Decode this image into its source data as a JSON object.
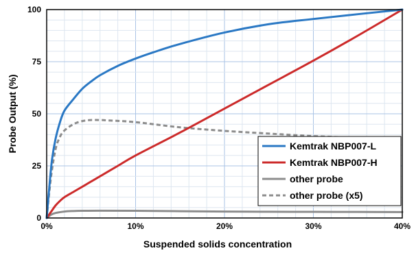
{
  "chart_data": {
    "type": "line",
    "title": "",
    "xlabel": "Suspended solids concentration",
    "ylabel": "Probe Output (%)",
    "xlim": [
      0,
      40
    ],
    "ylim": [
      0,
      100
    ],
    "x_ticks": [
      0,
      10,
      20,
      30,
      40
    ],
    "x_tick_labels": [
      "0%",
      "10%",
      "20%",
      "30%",
      "40%"
    ],
    "y_ticks": [
      0,
      25,
      50,
      75,
      100
    ],
    "y_tick_labels": [
      "0",
      "25",
      "50",
      "75",
      "100"
    ],
    "grid": true,
    "legend_position": "bottom-right",
    "series": [
      {
        "name": "Kemtrak NBP007-L",
        "color": "#2a78c4",
        "style": "solid",
        "x": [
          0,
          0.3,
          0.6,
          1.0,
          1.5,
          2.0,
          3.0,
          4.0,
          5.0,
          6.0,
          8.0,
          10.0,
          12.0,
          15.0,
          20.0,
          25.0,
          30.0,
          35.0,
          40.0
        ],
        "y": [
          0,
          15,
          28,
          38,
          46,
          51.5,
          57,
          62,
          65.5,
          68.5,
          73,
          76.5,
          79.5,
          83.5,
          89,
          93,
          95.5,
          97.8,
          100
        ]
      },
      {
        "name": "Kemtrak NBP007-H",
        "color": "#cc2a2a",
        "style": "solid",
        "x": [
          0,
          0.5,
          1.0,
          1.5,
          2.0,
          3.0,
          4.0,
          6.0,
          8.0,
          10.0,
          15.0,
          20.0,
          25.0,
          30.0,
          35.0,
          40.0
        ],
        "y": [
          0,
          3,
          6,
          8.2,
          10,
          12.5,
          15,
          20,
          25,
          30,
          41,
          52.5,
          64,
          75.5,
          87.5,
          100
        ]
      },
      {
        "name": "other probe",
        "color": "#8c8c8c",
        "style": "solid",
        "x": [
          0,
          0.5,
          1.0,
          2.0,
          3.0,
          4.0,
          6.0,
          10.0,
          15.0,
          20.0,
          25.0,
          30.0,
          35.0,
          40.0
        ],
        "y": [
          0,
          1.6,
          2.4,
          3.1,
          3.35,
          3.45,
          3.5,
          3.45,
          3.25,
          3.1,
          3.0,
          2.95,
          2.9,
          2.85
        ]
      },
      {
        "name": "other probe (x5)",
        "color": "#8c8c8c",
        "style": "dashed",
        "x": [
          0,
          0.5,
          1.0,
          1.5,
          2.0,
          3.0,
          4.0,
          5.0,
          6.0,
          7.0,
          10.0,
          15.0,
          20.0,
          25.0,
          30.0,
          35.0,
          40.0
        ],
        "y": [
          0,
          20,
          33,
          39,
          42,
          45,
          46.5,
          47,
          47,
          46.8,
          46,
          43.5,
          41.8,
          40.5,
          39.3,
          38.5,
          37.8
        ]
      }
    ]
  }
}
